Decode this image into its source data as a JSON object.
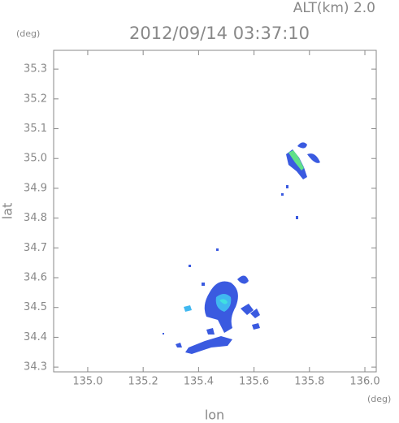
{
  "chart_data": {
    "type": "contour",
    "title": "2012/09/14 03:37:10",
    "annotation": "ALT(km)  2.0",
    "x_label": "lon",
    "y_label": "lat",
    "x_unit": "(deg)",
    "y_unit": "(deg)",
    "xlim": [
      134.877,
      136.041
    ],
    "xticks": [
      {
        "value": 135,
        "label": "135.0"
      },
      135.2,
      135.4,
      135.6,
      135.8,
      {
        "value": 136,
        "label": "136.0"
      }
    ],
    "ylim": [
      34.284,
      35.363
    ],
    "yticks": [
      34.3,
      34.4,
      34.5,
      34.6,
      34.7,
      34.8,
      34.9,
      {
        "value": 35,
        "label": "35.0"
      },
      35.1,
      35.2,
      35.3
    ]
  }
}
